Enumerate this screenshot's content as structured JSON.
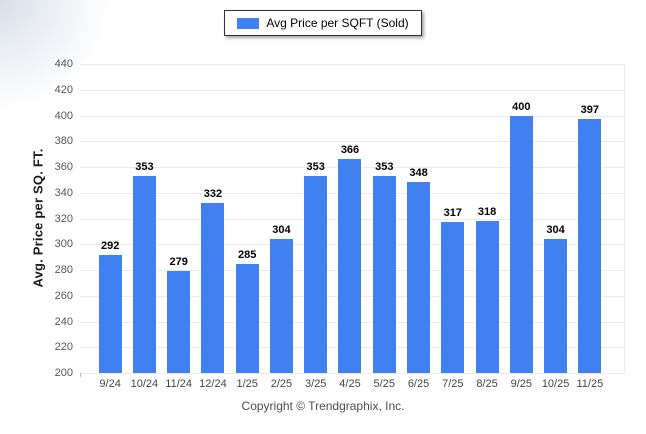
{
  "legend": {
    "label": "Avg Price per SQFT (Sold)"
  },
  "footer": {
    "copyright": "Copyright © Trendgraphix, Inc."
  },
  "chart_data": {
    "type": "bar",
    "title": "Avg Price per SQFT (Sold)",
    "categories": [
      "9/24",
      "10/24",
      "11/24",
      "12/24",
      "1/25",
      "2/25",
      "3/25",
      "4/25",
      "5/25",
      "6/25",
      "7/25",
      "8/25",
      "9/25",
      "10/25",
      "11/25"
    ],
    "values": [
      292,
      353,
      279,
      332,
      285,
      304,
      353,
      366,
      353,
      348,
      317,
      318,
      400,
      304,
      397
    ],
    "series_name": "Avg Price per SQFT (Sold)",
    "xlabel": "",
    "ylabel": "Avg. Price per SQ. FT.",
    "ylim": [
      200,
      440
    ],
    "ytick_step": 20,
    "grid": true,
    "legend_position": "top-center",
    "bar_color": "#4080f0",
    "grid_color": "#ebebeb"
  }
}
